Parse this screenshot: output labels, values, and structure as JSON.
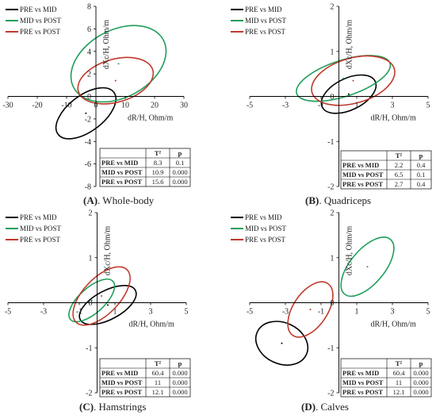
{
  "chart_data": [
    {
      "type": "scatter",
      "caption_letter": "(A)",
      "caption_text": ". Whole-body",
      "xlabel": "dR/H, Ohm/m",
      "ylabel": "dXc/H, Ohm/m",
      "xlim": [
        -30,
        30
      ],
      "ylim": [
        -8,
        8
      ],
      "xticks": [
        -30,
        -20,
        -10,
        0,
        10,
        20,
        30
      ],
      "yticks": [
        -8,
        -6,
        -4,
        -2,
        0,
        2,
        4,
        6,
        8
      ],
      "legend_position": "top-left",
      "series": [
        {
          "name": "PRE vs MID",
          "color": "#000000",
          "ellipse": {
            "cx": -3.4,
            "cy": -1.5,
            "rx": 11.9,
            "ry": 1.6,
            "angle": 37
          }
        },
        {
          "name": "MID vs POST",
          "color": "#1e9e5a",
          "ellipse": {
            "cx": 7.7,
            "cy": 2.9,
            "rx": 17.3,
            "ry": 3.0,
            "angle": 28
          }
        },
        {
          "name": "PRE vs POST",
          "color": "#c0392b",
          "ellipse": {
            "cx": 6.7,
            "cy": 1.4,
            "rx": 13.2,
            "ry": 1.9,
            "angle": 16
          }
        }
      ],
      "table": {
        "headers": [
          "",
          "T²",
          "p"
        ],
        "rows": [
          [
            "PRE vs MID",
            "8.3",
            "0.1"
          ],
          [
            "MID vs POST",
            "10.9",
            "0.000"
          ],
          [
            "PRE vs POST",
            "15.6",
            "0.000"
          ]
        ]
      }
    },
    {
      "type": "scatter",
      "caption_letter": "(B)",
      "caption_text": ". Quadriceps",
      "xlabel": "dR/H, Ohm/m",
      "ylabel": "dXc/H, Ohm/m",
      "xlim": [
        -5,
        5
      ],
      "ylim": [
        -2,
        2
      ],
      "xticks": [
        -5,
        -3,
        -1,
        1,
        3,
        5
      ],
      "yticks": [
        -2,
        -1,
        0,
        1,
        2
      ],
      "legend_position": "top-left",
      "series": [
        {
          "name": "PRE vs MID",
          "color": "#000000",
          "ellipse": {
            "cx": 0.55,
            "cy": 0.05,
            "rx": 1.65,
            "ry": 0.35,
            "angle": 26
          }
        },
        {
          "name": "MID vs POST",
          "color": "#1e9e5a",
          "ellipse": {
            "cx": 0.25,
            "cy": 0.4,
            "rx": 2.75,
            "ry": 0.4,
            "angle": 18
          }
        },
        {
          "name": "PRE vs POST",
          "color": "#c0392b",
          "ellipse": {
            "cx": 0.8,
            "cy": 0.35,
            "rx": 2.4,
            "ry": 0.5,
            "angle": 16
          }
        }
      ],
      "table": {
        "headers": [
          "",
          "T²",
          "p"
        ],
        "rows": [
          [
            "PRE vs MID",
            "2.2",
            "0.4"
          ],
          [
            "MID vs POST",
            "6.5",
            "0.1"
          ],
          [
            "PRE vs POST",
            "2.7",
            "0.4"
          ]
        ]
      }
    },
    {
      "type": "scatter",
      "caption_letter": "(C)",
      "caption_text": ". Hamstrings",
      "xlabel": "dR/H, Ohm/m",
      "ylabel": "dXc/H, Ohm/m",
      "xlim": [
        -5,
        5
      ],
      "ylim": [
        -2,
        2
      ],
      "xticks": [
        -5,
        -3,
        -1,
        1,
        3,
        5
      ],
      "yticks": [
        -2,
        -1,
        0,
        1,
        2
      ],
      "legend_position": "top-left",
      "series": [
        {
          "name": "PRE vs MID",
          "color": "#000000",
          "ellipse": {
            "cx": 0.6,
            "cy": -0.05,
            "rx": 1.75,
            "ry": 0.32,
            "angle": 28
          }
        },
        {
          "name": "MID vs POST",
          "color": "#1e9e5a",
          "ellipse": {
            "cx": -0.3,
            "cy": 0.05,
            "rx": 1.6,
            "ry": 0.28,
            "angle": 42
          }
        },
        {
          "name": "PRE vs POST",
          "color": "#c0392b",
          "ellipse": {
            "cx": 0.25,
            "cy": 0.15,
            "rx": 2.05,
            "ry": 0.4,
            "angle": 46
          }
        }
      ],
      "table": {
        "headers": [
          "",
          "T²",
          "p"
        ],
        "rows": [
          [
            "PRE vs MID",
            "60.4",
            "0.000"
          ],
          [
            "MID vs POST",
            "11",
            "0.000"
          ],
          [
            "PRE vs POST",
            "12.1",
            "0.000"
          ]
        ]
      }
    },
    {
      "type": "scatter",
      "caption_letter": "(D)",
      "caption_text": ". Calves",
      "xlabel": "dR/H, Ohm/m",
      "ylabel": "dXc/H, Ohm/m",
      "xlim": [
        -5,
        5
      ],
      "ylim": [
        -2,
        2
      ],
      "xticks": [
        -5,
        -3,
        -1,
        1,
        3,
        5
      ],
      "yticks": [
        -2,
        -1,
        0,
        1,
        2
      ],
      "legend_position": "top-left",
      "series": [
        {
          "name": "PRE vs MID",
          "color": "#000000",
          "ellipse": {
            "cx": -3.2,
            "cy": -0.9,
            "rx": 1.15,
            "ry": 0.6,
            "angle": 65
          }
        },
        {
          "name": "MID vs POST",
          "color": "#1e9e5a",
          "ellipse": {
            "cx": 1.6,
            "cy": 0.8,
            "rx": 2.0,
            "ry": 0.38,
            "angle": 50
          }
        },
        {
          "name": "PRE vs POST",
          "color": "#c0392b",
          "ellipse": {
            "cx": -1.6,
            "cy": -0.15,
            "rx": 1.75,
            "ry": 0.38,
            "angle": 56
          }
        }
      ],
      "table": {
        "headers": [
          "",
          "T²",
          "p"
        ],
        "rows": [
          [
            "PRE vs MID",
            "60.4",
            "0.000"
          ],
          [
            "MID vs POST",
            "11",
            "0.000"
          ],
          [
            "PRE vs POST",
            "12.1",
            "0.000"
          ]
        ]
      }
    }
  ]
}
